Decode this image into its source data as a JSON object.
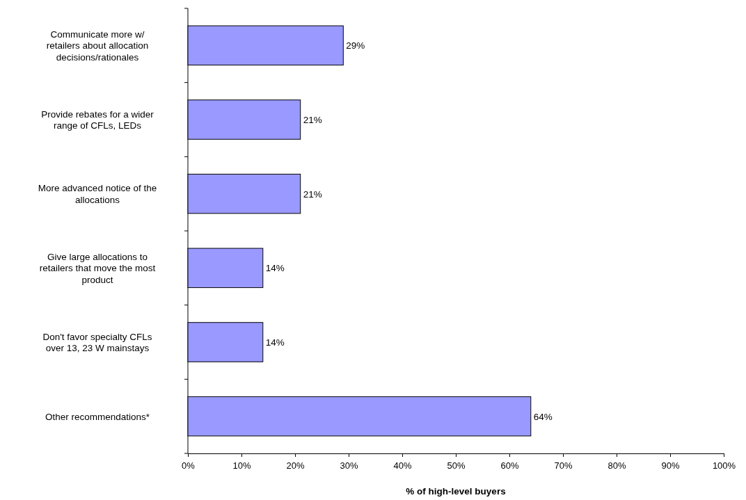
{
  "chart_data": {
    "type": "bar",
    "orientation": "horizontal",
    "xlabel": "% of high-level buyers",
    "categories": [
      "Communicate more w/ retailers about allocation decisions/rationales",
      "Provide rebates for a wider range of CFLs, LEDs",
      "More advanced notice of the allocations",
      "Give large allocations to retailers that move the most product",
      "Don't favor specialty CFLs over 13, 23 W mainstays",
      "Other recommendations*"
    ],
    "values": [
      29,
      21,
      21,
      14,
      14,
      64
    ],
    "value_labels": [
      "29%",
      "21%",
      "21%",
      "14%",
      "14%",
      "64%"
    ],
    "color": "#9999ff",
    "xlim": [
      0,
      100
    ],
    "xticks": [
      {
        "value": 0,
        "label": "0%"
      },
      {
        "value": 10,
        "label": "10%"
      },
      {
        "value": 20,
        "label": "20%"
      },
      {
        "value": 30,
        "label": "30%"
      },
      {
        "value": 40,
        "label": "40%"
      },
      {
        "value": 50,
        "label": "50%"
      },
      {
        "value": 60,
        "label": "60%"
      },
      {
        "value": 70,
        "label": "70%"
      },
      {
        "value": 80,
        "label": "80%"
      },
      {
        "value": 90,
        "label": "90%"
      },
      {
        "value": 100,
        "label": "100%"
      }
    ],
    "grid": false
  }
}
